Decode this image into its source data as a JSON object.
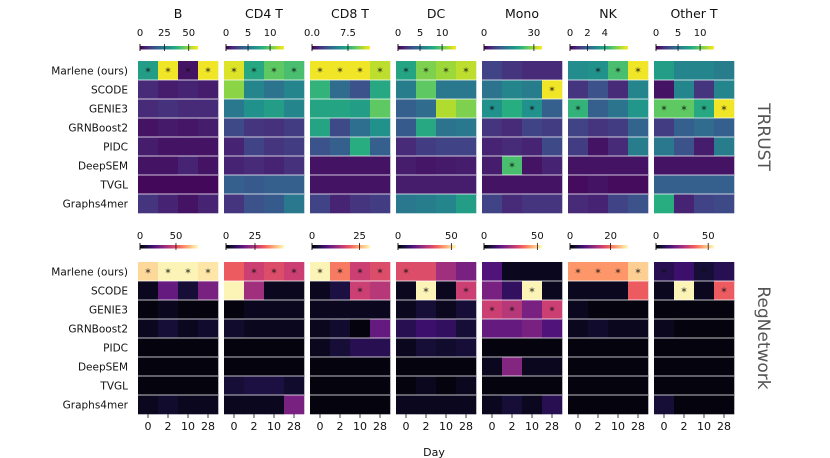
{
  "chart_data": {
    "type": "heatmap",
    "xlabel": "Day",
    "x_ticks": [
      "0",
      "2",
      "10",
      "28"
    ],
    "methods": [
      "Marlene (ours)",
      "SCODE",
      "GENIE3",
      "GRNBoost2",
      "PIDC",
      "DeepSEM",
      "TVGL",
      "Graphs4mer"
    ],
    "cell_types": [
      "B",
      "CD4 T",
      "CD8 T",
      "DC",
      "Mono",
      "NK",
      "Other T"
    ],
    "colormaps": {
      "TRRUST": "viridis",
      "RegNetwork": "magma"
    },
    "significance_marker": "*",
    "panels": [
      {
        "name": "TRRUST",
        "colorbar_ticks": [
          {
            "labels": [
              "0",
              "25",
              "50"
            ],
            "positions": [
              0.0,
              0.42,
              0.84
            ]
          },
          {
            "labels": [
              "0",
              "5",
              "10"
            ],
            "positions": [
              0.0,
              0.38,
              0.76
            ]
          },
          {
            "labels": [
              "0.0",
              "7.5"
            ],
            "positions": [
              0.0,
              0.62
            ]
          },
          {
            "labels": [
              "0",
              "5",
              "10"
            ],
            "positions": [
              0.0,
              0.38,
              0.76
            ]
          },
          {
            "labels": [
              "0",
              "30"
            ],
            "positions": [
              0.0,
              0.86
            ]
          },
          {
            "labels": [
              "0",
              "2",
              "4"
            ],
            "positions": [
              0.0,
              0.3,
              0.6
            ]
          },
          {
            "labels": [
              "0",
              "5",
              "10"
            ],
            "positions": [
              0.0,
              0.38,
              0.76
            ]
          }
        ],
        "values": [
          [
            [
              0.55,
              0.98,
              0.05,
              0.98
            ],
            [
              0.12,
              0.08,
              0.1,
              0.08
            ],
            [
              0.12,
              0.14,
              0.12,
              0.12
            ],
            [
              0.05,
              0.07,
              0.06,
              0.08
            ],
            [
              0.08,
              0.05,
              0.05,
              0.05
            ],
            [
              0.05,
              0.05,
              0.1,
              0.05
            ],
            [
              0.02,
              0.02,
              0.02,
              0.02
            ],
            [
              0.15,
              0.1,
              0.05,
              0.1
            ]
          ],
          [
            [
              0.95,
              0.6,
              0.75,
              0.7
            ],
            [
              0.82,
              0.45,
              0.38,
              0.45
            ],
            [
              0.4,
              0.5,
              0.55,
              0.45
            ],
            [
              0.22,
              0.15,
              0.14,
              0.18
            ],
            [
              0.1,
              0.2,
              0.15,
              0.18
            ],
            [
              0.1,
              0.12,
              0.1,
              0.14
            ],
            [
              0.3,
              0.28,
              0.3,
              0.3
            ],
            [
              0.15,
              0.25,
              0.28,
              0.4
            ]
          ],
          [
            [
              0.98,
              0.98,
              0.98,
              0.9
            ],
            [
              0.65,
              0.35,
              0.25,
              0.6
            ],
            [
              0.58,
              0.58,
              0.55,
              0.75
            ],
            [
              0.58,
              0.22,
              0.36,
              0.5
            ],
            [
              0.25,
              0.3,
              0.62,
              0.3
            ],
            [
              0.05,
              0.05,
              0.05,
              0.05
            ],
            [
              0.05,
              0.05,
              0.05,
              0.05
            ],
            [
              0.2,
              0.1,
              0.15,
              0.18
            ]
          ],
          [
            [
              0.58,
              0.8,
              0.85,
              0.9
            ],
            [
              0.42,
              0.75,
              0.4,
              0.4
            ],
            [
              0.3,
              0.35,
              0.88,
              0.8
            ],
            [
              0.28,
              0.6,
              0.38,
              0.4
            ],
            [
              0.12,
              0.18,
              0.2,
              0.2
            ],
            [
              0.08,
              0.06,
              0.07,
              0.08
            ],
            [
              0.08,
              0.08,
              0.08,
              0.08
            ],
            [
              0.4,
              0.42,
              0.45,
              0.55
            ]
          ],
          [
            [
              0.2,
              0.15,
              0.12,
              0.12
            ],
            [
              0.38,
              0.45,
              0.42,
              0.98
            ],
            [
              0.5,
              0.62,
              0.5,
              0.3
            ],
            [
              0.15,
              0.12,
              0.2,
              0.18
            ],
            [
              0.1,
              0.12,
              0.1,
              0.22
            ],
            [
              0.08,
              0.7,
              0.05,
              0.1
            ],
            [
              0.05,
              0.05,
              0.05,
              0.05
            ],
            [
              0.2,
              0.12,
              0.15,
              0.15
            ]
          ],
          [
            [
              0.48,
              0.5,
              0.7,
              0.98
            ],
            [
              0.15,
              0.25,
              0.12,
              0.45
            ],
            [
              0.65,
              0.3,
              0.38,
              0.52
            ],
            [
              0.2,
              0.15,
              0.18,
              0.32
            ],
            [
              0.18,
              0.05,
              0.12,
              0.42
            ],
            [
              0.05,
              0.05,
              0.05,
              0.05
            ],
            [
              0.03,
              0.05,
              0.03,
              0.03
            ],
            [
              0.12,
              0.1,
              0.2,
              0.25
            ]
          ],
          [
            [
              0.55,
              0.45,
              0.45,
              0.42
            ],
            [
              0.05,
              0.45,
              0.15,
              0.45
            ],
            [
              0.75,
              0.75,
              0.6,
              0.98
            ],
            [
              0.18,
              0.3,
              0.35,
              0.3
            ],
            [
              0.4,
              0.25,
              0.08,
              0.42
            ],
            [
              0.05,
              0.05,
              0.05,
              0.05
            ],
            [
              0.3,
              0.3,
              0.3,
              0.3
            ],
            [
              0.62,
              0.1,
              0.2,
              0.22
            ]
          ]
        ]
      },
      {
        "name": "RegNetwork",
        "colorbar_ticks": [
          {
            "labels": [
              "0",
              "50"
            ],
            "positions": [
              0.0,
              0.62
            ]
          },
          {
            "labels": [
              "0",
              "25"
            ],
            "positions": [
              0.0,
              0.5
            ]
          },
          {
            "labels": [
              "0",
              "25"
            ],
            "positions": [
              0.0,
              0.82
            ]
          },
          {
            "labels": [
              "0",
              "50"
            ],
            "positions": [
              0.0,
              0.92
            ]
          },
          {
            "labels": [
              "0",
              "50"
            ],
            "positions": [
              0.0,
              0.92
            ]
          },
          {
            "labels": [
              "0",
              "20"
            ],
            "positions": [
              0.0,
              0.7
            ]
          },
          {
            "labels": [
              "0",
              "50"
            ],
            "positions": [
              0.0,
              0.9
            ]
          }
        ],
        "values": [
          [
            [
              0.92,
              0.98,
              0.98,
              0.95
            ],
            [
              0.05,
              0.3,
              0.1,
              0.35
            ],
            [
              0.02,
              0.05,
              0.02,
              0.02
            ],
            [
              0.05,
              0.1,
              0.05,
              0.08
            ],
            [
              0.02,
              0.02,
              0.02,
              0.02
            ],
            [
              0.02,
              0.02,
              0.02,
              0.02
            ],
            [
              0.02,
              0.02,
              0.02,
              0.02
            ],
            [
              0.05,
              0.08,
              0.05,
              0.05
            ]
          ],
          [
            [
              0.65,
              0.55,
              0.6,
              0.55
            ],
            [
              0.98,
              0.45,
              0.05,
              0.05
            ],
            [
              0.02,
              0.05,
              0.05,
              0.05
            ],
            [
              0.08,
              0.05,
              0.05,
              0.05
            ],
            [
              0.02,
              0.02,
              0.02,
              0.02
            ],
            [
              0.02,
              0.02,
              0.02,
              0.02
            ],
            [
              0.1,
              0.12,
              0.12,
              0.08
            ],
            [
              0.05,
              0.05,
              0.05,
              0.35
            ]
          ],
          [
            [
              0.98,
              0.72,
              0.55,
              0.6
            ],
            [
              0.05,
              0.12,
              0.55,
              0.5
            ],
            [
              0.05,
              0.05,
              0.05,
              0.05
            ],
            [
              0.05,
              0.08,
              0.02,
              0.3
            ],
            [
              0.05,
              0.1,
              0.15,
              0.15
            ],
            [
              0.02,
              0.02,
              0.02,
              0.02
            ],
            [
              0.02,
              0.02,
              0.02,
              0.02
            ],
            [
              0.02,
              0.02,
              0.02,
              0.02
            ]
          ],
          [
            [
              0.6,
              0.6,
              0.45,
              0.35
            ],
            [
              0.05,
              0.98,
              0.05,
              0.55
            ],
            [
              0.05,
              0.1,
              0.05,
              0.1
            ],
            [
              0.15,
              0.2,
              0.18,
              0.1
            ],
            [
              0.05,
              0.1,
              0.08,
              0.1
            ],
            [
              0.02,
              0.02,
              0.02,
              0.02
            ],
            [
              0.02,
              0.05,
              0.02,
              0.05
            ],
            [
              0.05,
              0.05,
              0.05,
              0.05
            ]
          ],
          [
            [
              0.25,
              0.05,
              0.05,
              0.05
            ],
            [
              0.35,
              0.18,
              0.98,
              0.05
            ],
            [
              0.55,
              0.5,
              0.35,
              0.55
            ],
            [
              0.3,
              0.3,
              0.35,
              0.25
            ],
            [
              0.02,
              0.02,
              0.02,
              0.02
            ],
            [
              0.05,
              0.38,
              0.05,
              0.05
            ],
            [
              0.02,
              0.02,
              0.02,
              0.02
            ],
            [
              0.05,
              0.1,
              0.05,
              0.15
            ]
          ],
          [
            [
              0.78,
              0.78,
              0.78,
              0.9
            ],
            [
              0.05,
              0.05,
              0.05,
              0.65
            ],
            [
              0.05,
              0.02,
              0.02,
              0.02
            ],
            [
              0.05,
              0.08,
              0.05,
              0.05
            ],
            [
              0.02,
              0.02,
              0.02,
              0.02
            ],
            [
              0.02,
              0.02,
              0.02,
              0.02
            ],
            [
              0.02,
              0.02,
              0.02,
              0.02
            ],
            [
              0.02,
              0.02,
              0.02,
              0.02
            ]
          ],
          [
            [
              0.15,
              0.2,
              0.1,
              0.15
            ],
            [
              0.05,
              0.98,
              0.05,
              0.65
            ],
            [
              0.02,
              0.02,
              0.02,
              0.02
            ],
            [
              0.05,
              0.02,
              0.02,
              0.02
            ],
            [
              0.02,
              0.02,
              0.02,
              0.02
            ],
            [
              0.02,
              0.02,
              0.02,
              0.02
            ],
            [
              0.02,
              0.02,
              0.02,
              0.02
            ],
            [
              0.1,
              0.02,
              0.02,
              0.02
            ]
          ]
        ],
        "stars": [
          [
            [
              0,
              0
            ],
            [
              0,
              1
            ],
            [
              0,
              2
            ],
            [
              0,
              3
            ]
          ],
          [
            [
              0,
              1
            ],
            [
              0,
              2
            ],
            [
              0,
              3
            ]
          ],
          [
            [
              0,
              0
            ],
            [
              0,
              1
            ],
            [
              0,
              2
            ],
            [
              0,
              3
            ],
            [
              1,
              2
            ]
          ],
          [
            [
              0,
              0
            ],
            [
              1,
              1
            ],
            [
              1,
              3
            ]
          ],
          [
            [
              1,
              2
            ],
            [
              2,
              0
            ],
            [
              2,
              1
            ],
            [
              2,
              3
            ]
          ],
          [
            [
              0,
              0
            ],
            [
              0,
              1
            ],
            [
              0,
              2
            ],
            [
              0,
              3
            ]
          ],
          [
            [
              0,
              0
            ],
            [
              0,
              2
            ],
            [
              1,
              1
            ],
            [
              1,
              3
            ]
          ]
        ]
      }
    ],
    "stars_trrust": [
      [
        [
          0,
          0
        ],
        [
          0,
          1
        ],
        [
          0,
          2
        ],
        [
          0,
          3
        ]
      ],
      [
        [
          0,
          0
        ],
        [
          0,
          1
        ],
        [
          0,
          2
        ],
        [
          0,
          3
        ]
      ],
      [
        [
          0,
          0
        ],
        [
          0,
          1
        ],
        [
          0,
          2
        ],
        [
          0,
          3
        ]
      ],
      [
        [
          0,
          0
        ],
        [
          0,
          1
        ],
        [
          0,
          2
        ],
        [
          0,
          3
        ]
      ],
      [
        [
          1,
          3
        ],
        [
          2,
          0
        ],
        [
          2,
          2
        ],
        [
          5,
          1
        ]
      ],
      [
        [
          0,
          1
        ],
        [
          0,
          2
        ],
        [
          0,
          3
        ],
        [
          2,
          0
        ]
      ],
      [
        [
          2,
          0
        ],
        [
          2,
          1
        ],
        [
          2,
          2
        ],
        [
          2,
          3
        ]
      ]
    ]
  }
}
